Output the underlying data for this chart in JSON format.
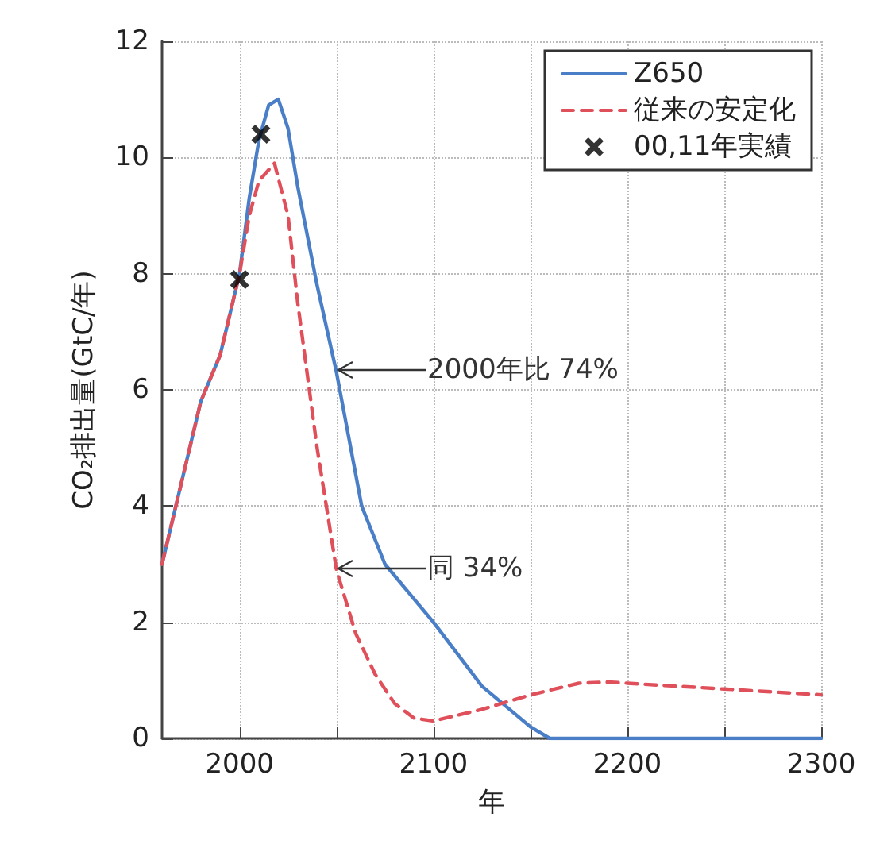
{
  "chart_data": {
    "type": "line",
    "xlabel": "年",
    "ylabel": "CO₂排出量(GtC/年)",
    "xlim": [
      1960,
      2300
    ],
    "xticks": [
      2000,
      {
        "value": 2050,
        "label": null
      },
      2100,
      {
        "value": 2150,
        "label": null
      },
      2200,
      {
        "value": 2250,
        "label": null
      },
      2300
    ],
    "ylim": [
      0,
      12
    ],
    "yticks": [
      0,
      2,
      4,
      6,
      8,
      10,
      12
    ],
    "grid": true,
    "legend": "top right",
    "series": [
      {
        "name": "Z650",
        "type": "line",
        "color": "#4a7fc8",
        "line_style": "solid",
        "marker": "none",
        "x": [
          1960,
          1970,
          1980,
          1990,
          2000,
          2005,
          2010,
          2015,
          2020,
          2025,
          2030,
          2040,
          2050,
          2063,
          2075,
          2100,
          2125,
          2150,
          2160,
          2200,
          2250,
          2300
        ],
        "values": [
          3.0,
          4.4,
          5.8,
          6.6,
          8.0,
          9.3,
          10.3,
          10.9,
          11.0,
          10.5,
          9.5,
          7.8,
          6.3,
          4.0,
          3.0,
          2.0,
          0.9,
          0.2,
          0,
          0,
          0,
          0
        ]
      },
      {
        "name": "従来の安定化",
        "type": "line",
        "color": "#e0505a",
        "line_style": "dashed",
        "marker": "none",
        "x": [
          1960,
          1970,
          1980,
          1990,
          2000,
          2005,
          2010,
          2018,
          2025,
          2030,
          2040,
          2050,
          2060,
          2070,
          2080,
          2090,
          2100,
          2125,
          2150,
          2175,
          2190,
          2200,
          2250,
          2300
        ],
        "values": [
          3.0,
          4.4,
          5.8,
          6.6,
          8.0,
          9.0,
          9.6,
          9.9,
          9.0,
          7.5,
          5.0,
          2.9,
          1.8,
          1.1,
          0.6,
          0.35,
          0.3,
          0.5,
          0.75,
          0.95,
          0.97,
          0.95,
          0.85,
          0.75
        ]
      },
      {
        "name": "00,11年実績",
        "type": "scatter",
        "color": "#000000",
        "marker": "cross",
        "x": [
          2000,
          2011
        ],
        "values": [
          7.9,
          10.4
        ]
      }
    ],
    "annotations": [
      "2000年比 74%",
      "同 34%"
    ]
  }
}
